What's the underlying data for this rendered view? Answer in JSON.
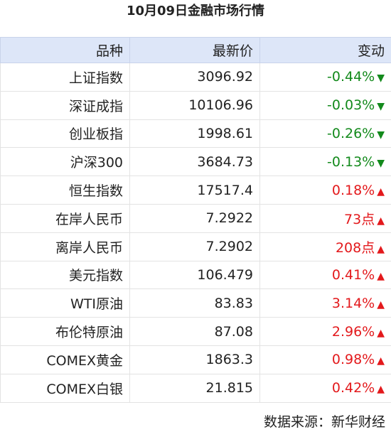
{
  "header": {
    "title": "10月09日金融市场行情"
  },
  "table": {
    "columns": [
      "品种",
      "最新价",
      "变动"
    ],
    "rows": [
      {
        "name": "上证指数",
        "price": "3096.92",
        "change": "-0.44%",
        "arrow": "▼",
        "color": "#138a1c"
      },
      {
        "name": "深证成指",
        "price": "10106.96",
        "change": "-0.03%",
        "arrow": "▼",
        "color": "#138a1c"
      },
      {
        "name": "创业板指",
        "price": "1998.61",
        "change": "-0.26%",
        "arrow": "▼",
        "color": "#138a1c"
      },
      {
        "name": "沪深300",
        "price": "3684.73",
        "change": "-0.13%",
        "arrow": "▼",
        "color": "#138a1c"
      },
      {
        "name": "恒生指数",
        "price": "17517.4",
        "change": "0.18%",
        "arrow": "▲",
        "color": "#e3191c"
      },
      {
        "name": "在岸人民币",
        "price": "7.2922",
        "change": "73点",
        "arrow": "▲",
        "color": "#e3191c"
      },
      {
        "name": "离岸人民币",
        "price": "7.2902",
        "change": "208点",
        "arrow": "▲",
        "color": "#e3191c"
      },
      {
        "name": "美元指数",
        "price": "106.479",
        "change": "0.41%",
        "arrow": "▲",
        "color": "#e3191c"
      },
      {
        "name": "WTI原油",
        "price": "83.83",
        "change": "3.14%",
        "arrow": "▲",
        "color": "#e3191c"
      },
      {
        "name": "布伦特原油",
        "price": "87.08",
        "change": "2.96%",
        "arrow": "▲",
        "color": "#e3191c"
      },
      {
        "name": "COMEX黄金",
        "price": "1863.3",
        "change": "0.98%",
        "arrow": "▲",
        "color": "#e3191c"
      },
      {
        "name": "COMEX白银",
        "price": "21.815",
        "change": "0.42%",
        "arrow": "▲",
        "color": "#e3191c"
      }
    ]
  },
  "footer": {
    "source": "数据来源：新华财经"
  }
}
